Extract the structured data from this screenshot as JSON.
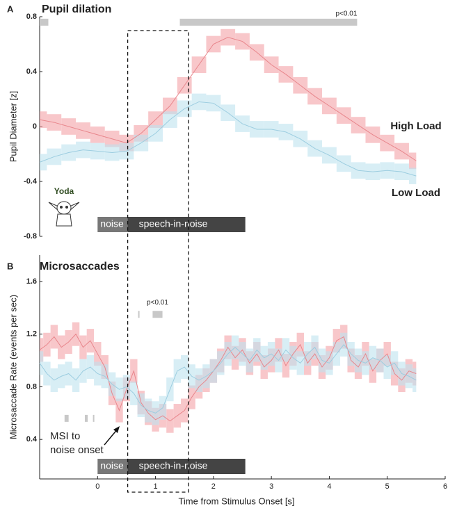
{
  "chart_data": [
    {
      "type": "line",
      "panel": "A",
      "title": "Pupil dilation",
      "y_label": "Pupil Diameter [z]",
      "character_label": "Yoda",
      "sig_label": "p<0.01",
      "xlim": [
        -1,
        6
      ],
      "ylim": [
        -0.8,
        0.8
      ],
      "yticks": [
        0.8,
        0.4,
        0,
        -0.4,
        -0.8
      ],
      "x": [
        -1,
        -0.75,
        -0.5,
        -0.25,
        0,
        0.25,
        0.5,
        0.75,
        1,
        1.25,
        1.5,
        1.75,
        2,
        2.25,
        2.5,
        2.75,
        3,
        3.25,
        3.5,
        3.75,
        4,
        4.25,
        4.5,
        4.75,
        5,
        5.25,
        5.5
      ],
      "series": [
        {
          "name": "High Load",
          "color": "#e0242b",
          "line_color": "#e8868c",
          "band_color": "#f4a3a8",
          "error": 0.06,
          "values": [
            0.05,
            0.03,
            0,
            -0.03,
            -0.06,
            -0.09,
            -0.12,
            -0.05,
            0.05,
            0.15,
            0.3,
            0.45,
            0.6,
            0.65,
            0.62,
            0.54,
            0.45,
            0.38,
            0.3,
            0.22,
            0.15,
            0.08,
            0.01,
            -0.06,
            -0.12,
            -0.18,
            -0.25
          ]
        },
        {
          "name": "Low Load",
          "color": "#a8d8ea",
          "line_color": "#9ccde0",
          "band_color": "#bfe3f0",
          "error": 0.06,
          "values": [
            -0.26,
            -0.22,
            -0.19,
            -0.17,
            -0.18,
            -0.19,
            -0.18,
            -0.12,
            -0.05,
            0.05,
            0.13,
            0.18,
            0.17,
            0.1,
            0.02,
            -0.02,
            -0.02,
            -0.04,
            -0.09,
            -0.16,
            -0.21,
            -0.27,
            -0.32,
            -0.33,
            -0.32,
            -0.33,
            -0.36
          ]
        }
      ],
      "significance": [
        {
          "y": 0.76,
          "spans": [
            [
              -1,
              -0.85
            ],
            [
              1.42,
              4.48
            ]
          ]
        }
      ],
      "stimulus": [
        {
          "label": "noise",
          "start": 0,
          "end": 0.52
        },
        {
          "label": "speech-in-noise",
          "start": 0.52,
          "end": 2.55
        }
      ]
    },
    {
      "type": "line",
      "panel": "B",
      "title": "Microsaccades",
      "y_label": "Microsaccade Rate (events per sec)",
      "x_label": "Time from Stimulus Onset [s]",
      "sig_label": "p<0.01",
      "annotation": [
        "MSI to",
        "noise onset"
      ],
      "xlim": [
        -1,
        6
      ],
      "xticks": [
        0,
        1,
        2,
        3,
        4,
        5,
        6
      ],
      "ylim": [
        0.1,
        1.8
      ],
      "yticks": [
        1.6,
        1.2,
        0.8,
        0.4
      ],
      "x": [
        -1,
        -0.875,
        -0.75,
        -0.625,
        -0.5,
        -0.375,
        -0.25,
        -0.125,
        0,
        0.125,
        0.25,
        0.375,
        0.5,
        0.625,
        0.75,
        0.875,
        1,
        1.125,
        1.25,
        1.375,
        1.5,
        1.625,
        1.75,
        1.875,
        2,
        2.125,
        2.25,
        2.375,
        2.5,
        2.625,
        2.75,
        2.875,
        3,
        3.125,
        3.25,
        3.375,
        3.5,
        3.625,
        3.75,
        3.875,
        4,
        4.125,
        4.25,
        4.375,
        4.5,
        4.625,
        4.75,
        4.875,
        5,
        5.125,
        5.25,
        5.375,
        5.5
      ],
      "series": [
        {
          "color": "#e8868c",
          "band_color": "#f4a3a8",
          "error": 0.09,
          "values": [
            1.08,
            1.12,
            1.18,
            1.1,
            1.14,
            1.2,
            1.1,
            1.15,
            1.05,
            0.95,
            0.75,
            0.62,
            0.78,
            0.92,
            0.68,
            0.6,
            0.55,
            0.58,
            0.54,
            0.58,
            0.62,
            0.72,
            0.8,
            0.85,
            0.92,
            1.0,
            1.1,
            1.02,
            1.08,
            0.98,
            1.05,
            0.95,
            1.0,
            1.08,
            0.96,
            1.05,
            1.12,
            0.98,
            1.05,
            0.95,
            1.02,
            1.15,
            1.18,
            1.0,
            0.95,
            1.05,
            0.92,
            1.0,
            1.05,
            0.9,
            0.85,
            0.92,
            0.9
          ]
        },
        {
          "color": "#9ccde0",
          "band_color": "#bfe3f0",
          "error": 0.09,
          "values": [
            0.98,
            0.9,
            0.85,
            0.88,
            0.9,
            0.85,
            0.92,
            0.95,
            0.9,
            0.88,
            0.82,
            0.78,
            0.8,
            0.75,
            0.66,
            0.62,
            0.6,
            0.64,
            0.78,
            0.92,
            0.95,
            0.88,
            0.85,
            0.88,
            0.92,
            0.98,
            1.05,
            1.1,
            1.05,
            1.0,
            1.08,
            1.02,
            1.05,
            1.0,
            1.08,
            1.02,
            0.98,
            1.05,
            1.1,
            1.0,
            0.98,
            1.05,
            1.12,
            1.05,
            1.0,
            0.98,
            1.02,
            1.0,
            0.95,
            0.98,
            0.9,
            0.88,
            0.85
          ]
        }
      ],
      "significance": [
        {
          "y": 1.35,
          "spans": [
            [
              0.7,
              0.72
            ],
            [
              0.95,
              1.12
            ]
          ]
        },
        {
          "y": 0.56,
          "spans": [
            [
              -0.57,
              -0.5
            ],
            [
              -0.22,
              -0.17
            ],
            [
              -0.08,
              -0.07
            ]
          ]
        }
      ],
      "stimulus": [
        {
          "label": "noise",
          "start": 0,
          "end": 0.52
        },
        {
          "label": "speech-in-noise",
          "start": 0.52,
          "end": 2.55
        }
      ]
    }
  ],
  "window": [
    0.52,
    1.57
  ]
}
